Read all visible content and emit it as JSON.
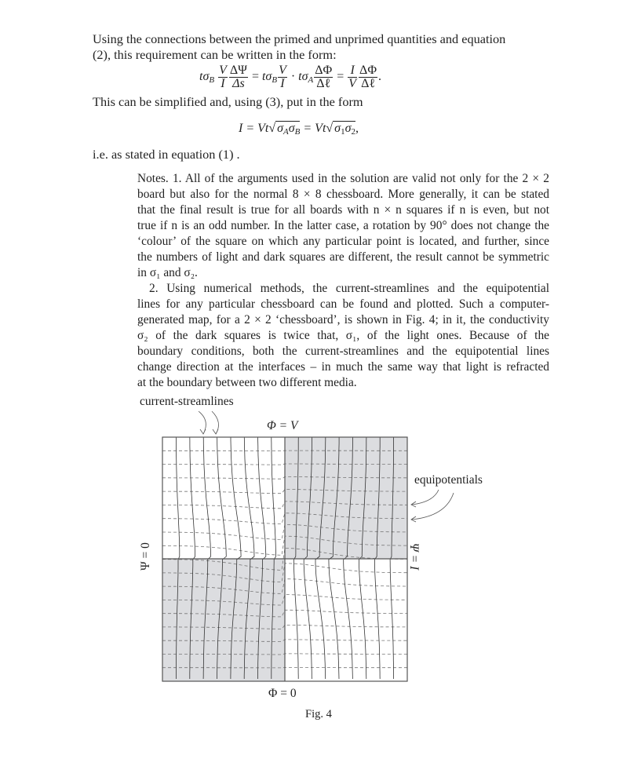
{
  "intro_lines": [
    "Using the connections between the primed and unprimed quantities and equation",
    "(2), this requirement can be written in the form:"
  ],
  "equation1": {
    "t_sigma_b": "tσ",
    "sub_b": "B",
    "sub_a": "A",
    "t_sigma_a": "tσ",
    "V": "V",
    "I": "I",
    "dPsi": "ΔΨ",
    "ds": "Δs",
    "dPhi": "ΔΦ",
    "dl": "Δℓ",
    "eq": "=",
    "dot": "·",
    "period": "."
  },
  "simplify_line": "This can be simplified and, using (3), put in the form",
  "equation2": {
    "lhs": "I = Vt",
    "rad1": "σ",
    "rad1_sub_a": "A",
    "rad1_sub_b": "B",
    "mid": " = Vt",
    "rad2_sub_1": "1",
    "rad2_sub_2": "2",
    "tail": ","
  },
  "ie_line": "i.e. as stated in equation (1) .",
  "notes_lines": [
    "Notes. 1. All of the arguments used in the solution are valid not only for the 2 × 2",
    "board but also for the normal 8 × 8 chessboard. More generally, it can be stated",
    "that the final result is true for all boards with n × n squares if n is even, but not",
    "true if n is an odd number. In the latter case, a rotation by 90° does not change the",
    "‘colour’ of the square on which any particular point is located, and further, since",
    "the numbers of light and dark squares are different, the result cannot be symmetric",
    "in σ₁ and σ₂.",
    "2. Using numerical methods, the current-streamlines and the equipotential",
    "lines for any particular chessboard can be found and plotted. Such a computer-",
    "generated map, for a 2 × 2 ‘chessboard’, is shown in Fig. 4; in it, the conductivity",
    "σ₂ of the dark squares is twice that, σ₁, of the light ones. Because of the",
    "boundary conditions, both the current-streamlines and the equipotential lines",
    "change direction at the interfaces – in much the same way that light is refracted",
    "at the boundary between two different media."
  ],
  "figure": {
    "label_streamlines": "current-streamlines",
    "label_equipotentials": "equipotentials",
    "top": "Φ = V",
    "bottom": "Φ = 0",
    "left": "Ψ = 0",
    "right": "Ψ = I",
    "caption": "Fig. 4",
    "colors": {
      "dark_square": "#dcdde0",
      "light_square": "#ffffff",
      "lines": "#333333",
      "dashed": "#777777"
    }
  }
}
